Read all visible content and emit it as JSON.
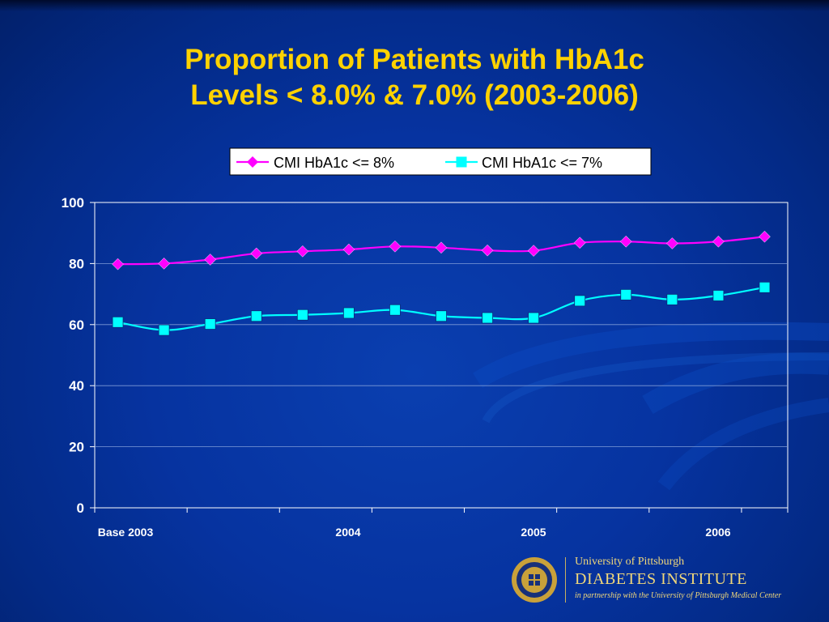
{
  "slide": {
    "title_line1": "Proportion of Patients with HbA1c",
    "title_line2": "Levels < 8.0% & 7.0% (2003-2006)"
  },
  "colors": {
    "title": "#ffd200",
    "series_8": "#ff00ff",
    "series_7": "#00ffff",
    "axis_text": "#ffffff"
  },
  "chart_data": {
    "type": "line",
    "title": "",
    "xlabel": "",
    "ylabel": "",
    "ylim": [
      0,
      100
    ],
    "yticks": [
      0,
      20,
      40,
      60,
      80,
      100
    ],
    "x_tick_labels": [
      "Base  2003",
      "2004",
      "2005",
      "2006"
    ],
    "grid": true,
    "legend_position": "top",
    "series": [
      {
        "name": "CMI HbA1c <= 8%",
        "marker": "diamond",
        "color": "#ff00ff",
        "values": [
          79.8,
          80.0,
          81.3,
          83.3,
          84.0,
          84.6,
          85.6,
          85.2,
          84.3,
          84.2,
          86.8,
          87.2,
          86.6,
          87.2,
          88.8
        ]
      },
      {
        "name": "CMI HbA1c <= 7%",
        "marker": "square",
        "color": "#00ffff",
        "values": [
          60.8,
          58.2,
          60.2,
          62.8,
          63.2,
          63.8,
          64.8,
          62.8,
          62.2,
          62.2,
          67.8,
          69.8,
          68.2,
          69.5,
          72.2
        ]
      }
    ]
  },
  "logo": {
    "seal_text": "UNIVERSITY OF PITTSBURGH",
    "line1": "University of Pittsburgh",
    "line2": "DIABETES INSTITUTE",
    "line3": "in partnership with the University of Pittsburgh Medical Center"
  }
}
